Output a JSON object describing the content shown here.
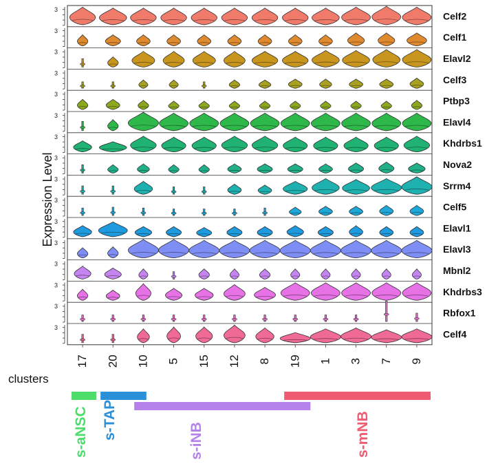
{
  "chart_data": {
    "type": "violin",
    "ylabel": "Expression Level",
    "row_ytick": "3",
    "clusters_label": "clusters",
    "clusters": [
      "17",
      "20",
      "10",
      "5",
      "15",
      "12",
      "8",
      "19",
      "1",
      "3",
      "7",
      "9"
    ],
    "genes": [
      {
        "name": "Celf2",
        "color": "#f07b6b",
        "widths": [
          0.85,
          0.9,
          0.85,
          0.85,
          0.85,
          0.85,
          0.85,
          0.85,
          0.9,
          0.95,
          0.95,
          0.95
        ],
        "heights": [
          0.95,
          0.9,
          0.9,
          0.9,
          0.9,
          0.9,
          0.9,
          0.9,
          0.9,
          0.95,
          1.0,
          0.95
        ]
      },
      {
        "name": "Celf1",
        "color": "#df8a2f",
        "widths": [
          0.35,
          0.5,
          0.45,
          0.45,
          0.45,
          0.45,
          0.45,
          0.45,
          0.45,
          0.55,
          0.55,
          0.65
        ],
        "heights": [
          0.6,
          0.6,
          0.6,
          0.6,
          0.6,
          0.6,
          0.6,
          0.6,
          0.6,
          0.7,
          0.7,
          0.7
        ]
      },
      {
        "name": "Elavl2",
        "color": "#c8951f",
        "widths": [
          0.04,
          0.35,
          0.75,
          0.7,
          0.75,
          0.7,
          0.85,
          0.85,
          0.9,
          0.9,
          0.9,
          0.95
        ],
        "heights": [
          0.45,
          0.55,
          0.85,
          0.85,
          0.85,
          0.85,
          0.85,
          0.85,
          0.9,
          0.9,
          0.95,
          0.95
        ]
      },
      {
        "name": "Celf3",
        "color": "#a8a020",
        "widths": [
          0.04,
          0.05,
          0.3,
          0.3,
          0.05,
          0.35,
          0.4,
          0.45,
          0.4,
          0.45,
          0.45,
          0.45
        ],
        "heights": [
          0.35,
          0.35,
          0.45,
          0.45,
          0.35,
          0.45,
          0.45,
          0.5,
          0.5,
          0.5,
          0.5,
          0.55
        ]
      },
      {
        "name": "Ptbp3",
        "color": "#8ca81e",
        "widths": [
          0.35,
          0.45,
          0.35,
          0.35,
          0.35,
          0.35,
          0.35,
          0.35,
          0.35,
          0.35,
          0.35,
          0.35
        ],
        "heights": [
          0.55,
          0.55,
          0.5,
          0.45,
          0.45,
          0.45,
          0.45,
          0.45,
          0.45,
          0.45,
          0.45,
          0.5
        ]
      },
      {
        "name": "Elavl4",
        "color": "#2fb84a",
        "widths": [
          0.04,
          0.35,
          1.0,
          0.95,
          0.95,
          0.95,
          0.95,
          0.95,
          0.95,
          0.95,
          0.95,
          0.95
        ],
        "heights": [
          0.5,
          0.6,
          1.0,
          0.95,
          0.95,
          0.95,
          0.95,
          0.95,
          0.95,
          0.95,
          0.95,
          0.95
        ]
      },
      {
        "name": "Khdrbs1",
        "color": "#1fb273",
        "widths": [
          0.6,
          0.9,
          0.85,
          0.8,
          0.8,
          0.85,
          0.85,
          0.8,
          0.8,
          0.8,
          0.8,
          0.85
        ],
        "heights": [
          0.6,
          0.55,
          0.85,
          0.8,
          0.8,
          0.85,
          0.85,
          0.8,
          0.8,
          0.8,
          0.8,
          0.85
        ]
      },
      {
        "name": "Nova2",
        "color": "#1fb08a",
        "widths": [
          0.04,
          0.35,
          0.4,
          0.35,
          0.35,
          0.45,
          0.5,
          0.5,
          0.45,
          0.5,
          0.5,
          0.55
        ],
        "heights": [
          0.45,
          0.45,
          0.5,
          0.45,
          0.45,
          0.5,
          0.5,
          0.5,
          0.5,
          0.55,
          0.6,
          0.55
        ]
      },
      {
        "name": "Srrm4",
        "color": "#1fb0b0",
        "widths": [
          0.04,
          0.05,
          0.6,
          0.04,
          0.05,
          0.45,
          0.45,
          0.8,
          0.9,
          0.9,
          1.0,
          1.0
        ],
        "heights": [
          0.45,
          0.45,
          0.7,
          0.4,
          0.4,
          0.55,
          0.5,
          0.7,
          0.85,
          0.8,
          0.85,
          0.95
        ]
      },
      {
        "name": "Celf5",
        "color": "#1ea8d8",
        "widths": [
          0.04,
          0.04,
          0.04,
          0.04,
          0.04,
          0.04,
          0.04,
          0.4,
          0.45,
          0.45,
          0.45,
          0.45
        ],
        "heights": [
          0.4,
          0.45,
          0.4,
          0.35,
          0.35,
          0.35,
          0.4,
          0.45,
          0.5,
          0.5,
          0.55,
          0.55
        ]
      },
      {
        "name": "Elavl1",
        "color": "#1e9bde",
        "widths": [
          0.6,
          0.95,
          0.55,
          0.5,
          0.5,
          0.5,
          0.5,
          0.55,
          0.5,
          0.45,
          0.45,
          0.45
        ],
        "heights": [
          0.6,
          0.8,
          0.55,
          0.55,
          0.5,
          0.55,
          0.55,
          0.6,
          0.55,
          0.6,
          0.55,
          0.55
        ]
      },
      {
        "name": "Elavl3",
        "color": "#7f8ef5",
        "widths": [
          0.35,
          0.35,
          1.0,
          1.0,
          1.0,
          1.0,
          1.0,
          1.0,
          1.0,
          1.0,
          1.0,
          1.0
        ],
        "heights": [
          0.55,
          0.6,
          1.0,
          1.0,
          0.95,
          0.95,
          0.95,
          0.95,
          0.95,
          0.95,
          0.95,
          0.95
        ]
      },
      {
        "name": "Mbnl2",
        "color": "#c585f0",
        "widths": [
          0.55,
          0.55,
          0.3,
          0.05,
          0.35,
          0.3,
          0.35,
          0.3,
          0.3,
          0.3,
          0.3,
          0.3
        ],
        "heights": [
          0.7,
          0.6,
          0.55,
          0.4,
          0.55,
          0.55,
          0.55,
          0.55,
          0.55,
          0.55,
          0.55,
          0.55
        ]
      },
      {
        "name": "Khdrbs3",
        "color": "#e672e6",
        "widths": [
          0.35,
          0.45,
          0.5,
          0.55,
          0.6,
          0.7,
          0.7,
          0.95,
          0.95,
          0.95,
          0.95,
          0.95
        ],
        "heights": [
          0.6,
          0.55,
          0.9,
          0.65,
          0.65,
          0.85,
          0.7,
          0.95,
          0.95,
          0.95,
          0.95,
          0.95
        ]
      },
      {
        "name": "Rbfox1",
        "color": "#ee6fcf",
        "widths": [
          0.04,
          0.04,
          0.04,
          0.04,
          0.04,
          0.04,
          0.04,
          0.04,
          0.04,
          0.04,
          0.04,
          0.04
        ],
        "heights": [
          0.35,
          0.35,
          0.35,
          0.35,
          0.35,
          0.35,
          0.35,
          0.35,
          0.35,
          0.35,
          1.1,
          0.45
        ]
      },
      {
        "name": "Celf4",
        "color": "#f06a96",
        "widths": [
          0.04,
          0.04,
          0.4,
          0.45,
          0.55,
          0.7,
          0.6,
          1.0,
          1.0,
          1.0,
          1.0,
          1.0
        ],
        "heights": [
          0.45,
          0.45,
          0.75,
          0.85,
          0.85,
          0.95,
          0.8,
          0.55,
          0.75,
          0.8,
          0.7,
          0.75
        ]
      }
    ],
    "groups": [
      {
        "name": "s-aNSC",
        "color": "#4ddd6a",
        "from": "17",
        "to": "17"
      },
      {
        "name": "s-TAP",
        "color": "#2a90d8",
        "from": "20",
        "to": "10"
      },
      {
        "name": "s-iNB",
        "color": "#b582ec",
        "from": "10",
        "to": "8"
      },
      {
        "name": "s-mNB",
        "color": "#ef5b70",
        "from": "19",
        "to": "9"
      }
    ]
  }
}
